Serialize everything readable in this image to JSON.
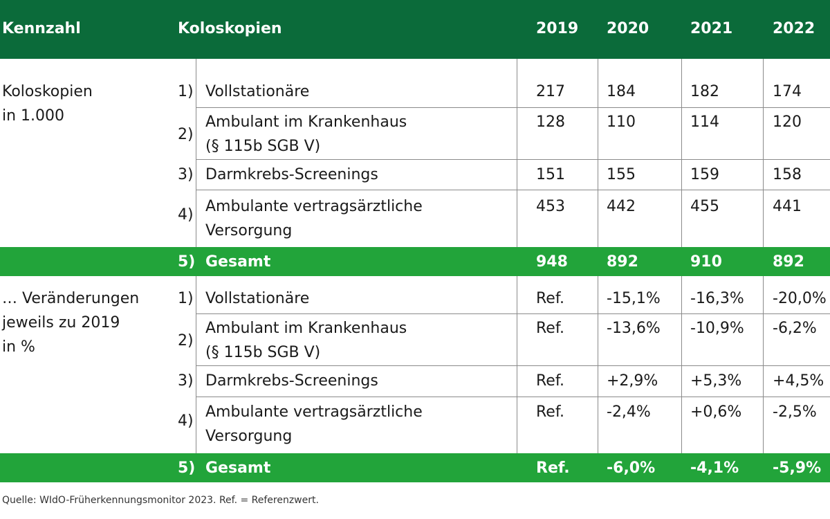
{
  "header": {
    "kennzahl": "Kennzahl",
    "koloskopien": "Koloskopien",
    "years": [
      "2019",
      "2020",
      "2021",
      "2022"
    ]
  },
  "section1": {
    "label_line1": "Koloskopien",
    "label_line2": "in 1.000",
    "rows": [
      {
        "num": "1)",
        "line1": "Vollstationäre",
        "line2": "",
        "values": [
          "217",
          "184",
          "182",
          "174"
        ]
      },
      {
        "num": "2)",
        "line1": "Ambulant im Krankenhaus",
        "line2": "(§ 115b SGB V)",
        "values": [
          "128",
          "110",
          "114",
          "120"
        ]
      },
      {
        "num": "3)",
        "line1": "Darmkrebs-Screenings",
        "line2": "",
        "values": [
          "151",
          "155",
          "159",
          "158"
        ]
      },
      {
        "num": "4)",
        "line1": "Ambulante vertragsärztliche",
        "line2": "Versorgung",
        "values": [
          "453",
          "442",
          "455",
          "441"
        ]
      }
    ],
    "total": {
      "num": "5)",
      "label": "Gesamt",
      "values": [
        "948",
        "892",
        "910",
        "892"
      ]
    }
  },
  "section2": {
    "label_line1": "… Veränderungen",
    "label_line2": "jeweils zu 2019",
    "label_line3": "in %",
    "rows": [
      {
        "num": "1)",
        "line1": "Vollstationäre",
        "line2": "",
        "values": [
          "Ref.",
          "-15,1%",
          "-16,3%",
          "-20,0%"
        ]
      },
      {
        "num": "2)",
        "line1": "Ambulant im Krankenhaus",
        "line2": "(§ 115b SGB V)",
        "values": [
          "Ref.",
          "-13,6%",
          "-10,9%",
          "-6,2%"
        ]
      },
      {
        "num": "3)",
        "line1": "Darmkrebs-Screenings",
        "line2": "",
        "values": [
          "Ref.",
          "+2,9%",
          "+5,3%",
          "+4,5%"
        ]
      },
      {
        "num": "4)",
        "line1": "Ambulante vertragsärztliche",
        "line2": "Versorgung",
        "values": [
          "Ref.",
          "-2,4%",
          "+0,6%",
          "-2,5%"
        ]
      }
    ],
    "total": {
      "num": "5)",
      "label": "Gesamt",
      "values": [
        "Ref.",
        "-6,0%",
        "-4,1%",
        "-5,9%"
      ]
    }
  },
  "source": "Quelle: WIdO-Früherkennungsmonitor 2023. Ref. = Referenzwert.",
  "colors": {
    "header": "#0b6b3a",
    "band": "#22a43a"
  }
}
